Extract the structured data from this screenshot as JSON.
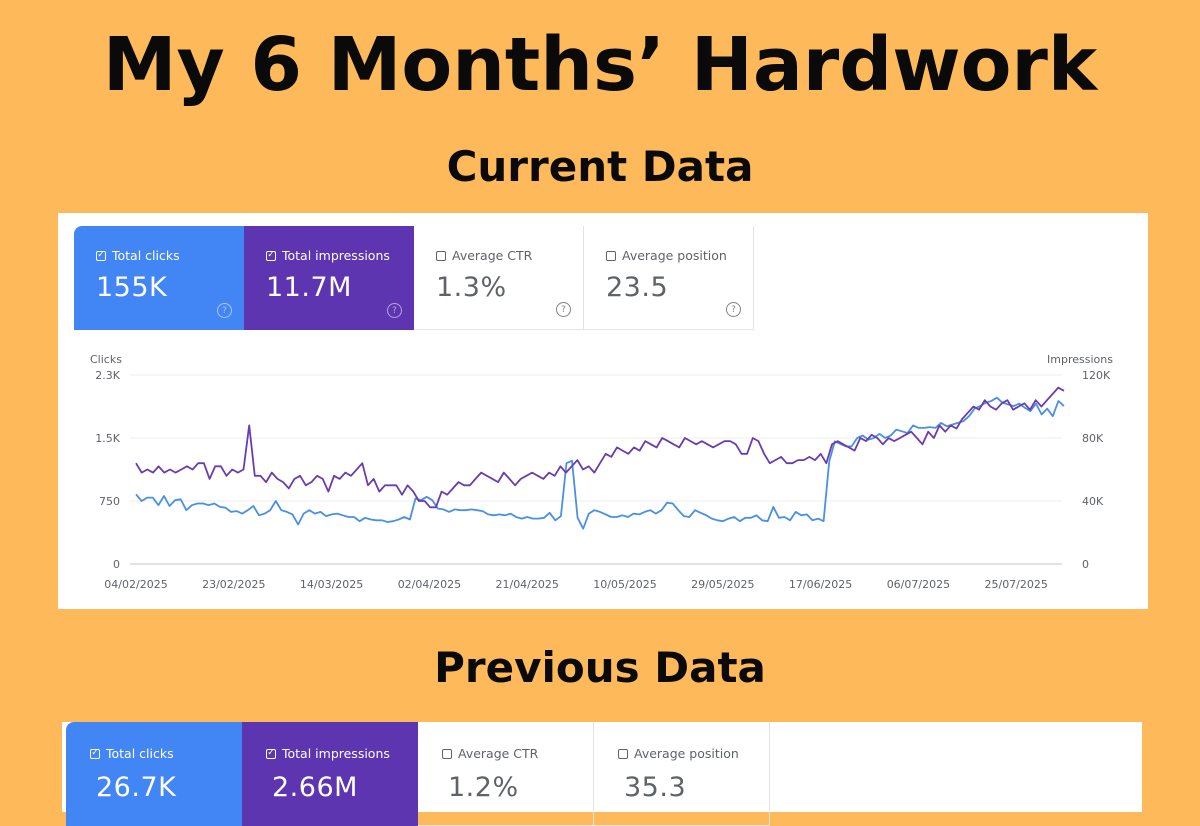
{
  "title": "My 6 Months’ Hardwork",
  "current_title": "Current Data",
  "previous_title": "Previous Data",
  "current": {
    "cards": [
      {
        "label": "Total clicks",
        "value": "155K",
        "checked": true,
        "color": "#4285F4"
      },
      {
        "label": "Total impressions",
        "value": "11.7M",
        "checked": true,
        "color": "#5E35B1"
      },
      {
        "label": "Average CTR",
        "value": "1.3%",
        "checked": false
      },
      {
        "label": "Average position",
        "value": "23.5",
        "checked": false
      }
    ]
  },
  "previous": {
    "cards": [
      {
        "label": "Total clicks",
        "value": "26.7K",
        "checked": true,
        "color": "#4285F4"
      },
      {
        "label": "Total impressions",
        "value": "2.66M",
        "checked": true,
        "color": "#5E35B1"
      },
      {
        "label": "Average CTR",
        "value": "1.2%",
        "checked": false
      },
      {
        "label": "Average position",
        "value": "35.3",
        "checked": false
      }
    ]
  },
  "chart_data": {
    "type": "line",
    "title": "",
    "xlabel": "",
    "ylabel": "Clicks",
    "y2label": "Impressions",
    "ylim": [
      0,
      2250
    ],
    "y2lim": [
      0,
      120000
    ],
    "yticks": [
      "0",
      "750",
      "1.5K",
      "2.3K"
    ],
    "y2ticks": [
      "0",
      "40K",
      "80K",
      "120K"
    ],
    "xticks": [
      "04/02/2025",
      "23/02/2025",
      "14/03/2025",
      "02/04/2025",
      "21/04/2025",
      "10/05/2025",
      "29/05/2025",
      "17/06/2025",
      "06/07/2025",
      "25/07/2025"
    ],
    "x_start": "04/02/2025",
    "x_end": "04/08/2025",
    "grid": true,
    "series": [
      {
        "name": "Clicks",
        "axis": "left",
        "color": "#4A90E2",
        "values": [
          830,
          750,
          790,
          790,
          700,
          810,
          690,
          760,
          770,
          640,
          700,
          720,
          720,
          700,
          720,
          680,
          670,
          620,
          630,
          600,
          640,
          690,
          580,
          600,
          640,
          750,
          640,
          620,
          590,
          470,
          600,
          640,
          600,
          620,
          570,
          590,
          600,
          580,
          560,
          560,
          510,
          550,
          530,
          520,
          520,
          500,
          510,
          530,
          560,
          530,
          780,
          760,
          800,
          760,
          660,
          650,
          620,
          650,
          640,
          640,
          650,
          640,
          630,
          590,
          580,
          590,
          580,
          600,
          560,
          540,
          560,
          540,
          540,
          550,
          610,
          520,
          570,
          1200,
          1230,
          550,
          420,
          600,
          640,
          620,
          590,
          560,
          560,
          580,
          560,
          600,
          590,
          620,
          640,
          600,
          640,
          730,
          720,
          640,
          570,
          560,
          640,
          610,
          580,
          540,
          520,
          510,
          540,
          560,
          510,
          550,
          550,
          580,
          520,
          510,
          680,
          550,
          560,
          520,
          620,
          580,
          590,
          520,
          540,
          510,
          1220,
          1460,
          1430,
          1400,
          1400,
          1500,
          1530,
          1480,
          1500,
          1550,
          1500,
          1530,
          1600,
          1580,
          1560,
          1650,
          1620,
          1620,
          1630,
          1620,
          1680,
          1640,
          1660,
          1680,
          1700,
          1760,
          1850,
          1880,
          1920,
          1940,
          1980,
          1920,
          1900,
          1880,
          1910,
          1860,
          1820,
          1910,
          1780,
          1850,
          1760,
          1940,
          1880
        ]
      },
      {
        "name": "Impressions",
        "axis": "right",
        "color": "#6A3CB0",
        "values": [
          64000,
          58000,
          60000,
          58000,
          62000,
          58000,
          60000,
          58000,
          60000,
          62000,
          60000,
          64000,
          64000,
          54000,
          62000,
          62000,
          56000,
          60000,
          58000,
          60000,
          88000,
          56000,
          56000,
          52000,
          58000,
          54000,
          52000,
          48000,
          54000,
          56000,
          50000,
          52000,
          56000,
          54000,
          46000,
          56000,
          54000,
          58000,
          56000,
          60000,
          64000,
          50000,
          54000,
          46000,
          50000,
          50000,
          50000,
          44000,
          50000,
          46000,
          40000,
          40000,
          36000,
          36000,
          46000,
          44000,
          48000,
          52000,
          50000,
          50000,
          54000,
          58000,
          56000,
          54000,
          52000,
          58000,
          54000,
          50000,
          54000,
          56000,
          58000,
          56000,
          54000,
          58000,
          56000,
          62000,
          58000,
          62000,
          66000,
          60000,
          62000,
          58000,
          64000,
          70000,
          68000,
          74000,
          72000,
          70000,
          74000,
          72000,
          78000,
          76000,
          74000,
          80000,
          78000,
          76000,
          74000,
          80000,
          78000,
          76000,
          78000,
          76000,
          74000,
          76000,
          78000,
          78000,
          76000,
          70000,
          70000,
          80000,
          78000,
          70000,
          64000,
          66000,
          68000,
          64000,
          64000,
          66000,
          66000,
          68000,
          66000,
          70000,
          64000,
          76000,
          78000,
          76000,
          74000,
          72000,
          80000,
          78000,
          82000,
          80000,
          76000,
          80000,
          78000,
          80000,
          82000,
          84000,
          80000,
          76000,
          84000,
          80000,
          88000,
          84000,
          88000,
          86000,
          92000,
          96000,
          100000,
          98000,
          104000,
          100000,
          98000,
          102000,
          104000,
          98000,
          100000,
          102000,
          98000,
          104000,
          100000,
          104000,
          108000,
          112000,
          110000
        ]
      }
    ]
  }
}
